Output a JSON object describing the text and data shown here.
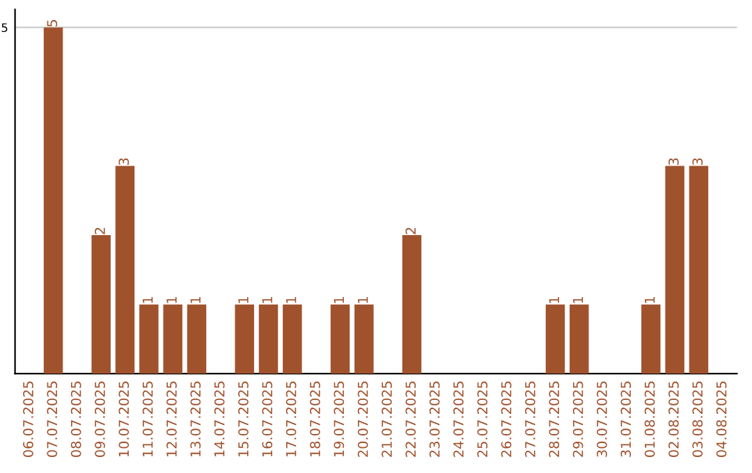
{
  "chart_data": {
    "type": "bar",
    "categories": [
      "06.07.2025",
      "07.07.2025",
      "08.07.2025",
      "09.07.2025",
      "10.07.2025",
      "11.07.2025",
      "12.07.2025",
      "13.07.2025",
      "14.07.2025",
      "15.07.2025",
      "16.07.2025",
      "17.07.2025",
      "18.07.2025",
      "19.07.2025",
      "20.07.2025",
      "21.07.2025",
      "22.07.2025",
      "23.07.2025",
      "24.07.2025",
      "25.07.2025",
      "26.07.2025",
      "27.07.2025",
      "28.07.2025",
      "29.07.2025",
      "30.07.2025",
      "31.07.2025",
      "01.08.2025",
      "02.08.2025",
      "03.08.2025",
      "04.08.2025"
    ],
    "values": [
      0,
      5,
      0,
      2,
      3,
      1,
      1,
      1,
      0,
      1,
      1,
      1,
      0,
      1,
      1,
      0,
      2,
      0,
      0,
      0,
      0,
      0,
      1,
      1,
      0,
      0,
      1,
      3,
      3,
      0
    ],
    "value_labels": [
      null,
      "5",
      null,
      "2",
      "3",
      "1",
      "1",
      "1",
      null,
      "1",
      "1",
      "1",
      null,
      "1",
      "1",
      null,
      "2",
      null,
      null,
      null,
      null,
      null,
      "1",
      "1",
      null,
      null,
      "1",
      "3",
      "3",
      null
    ],
    "color": "#a0522d",
    "ylim": [
      0,
      5.26
    ],
    "yticks": [
      5
    ],
    "grid": "y"
  }
}
